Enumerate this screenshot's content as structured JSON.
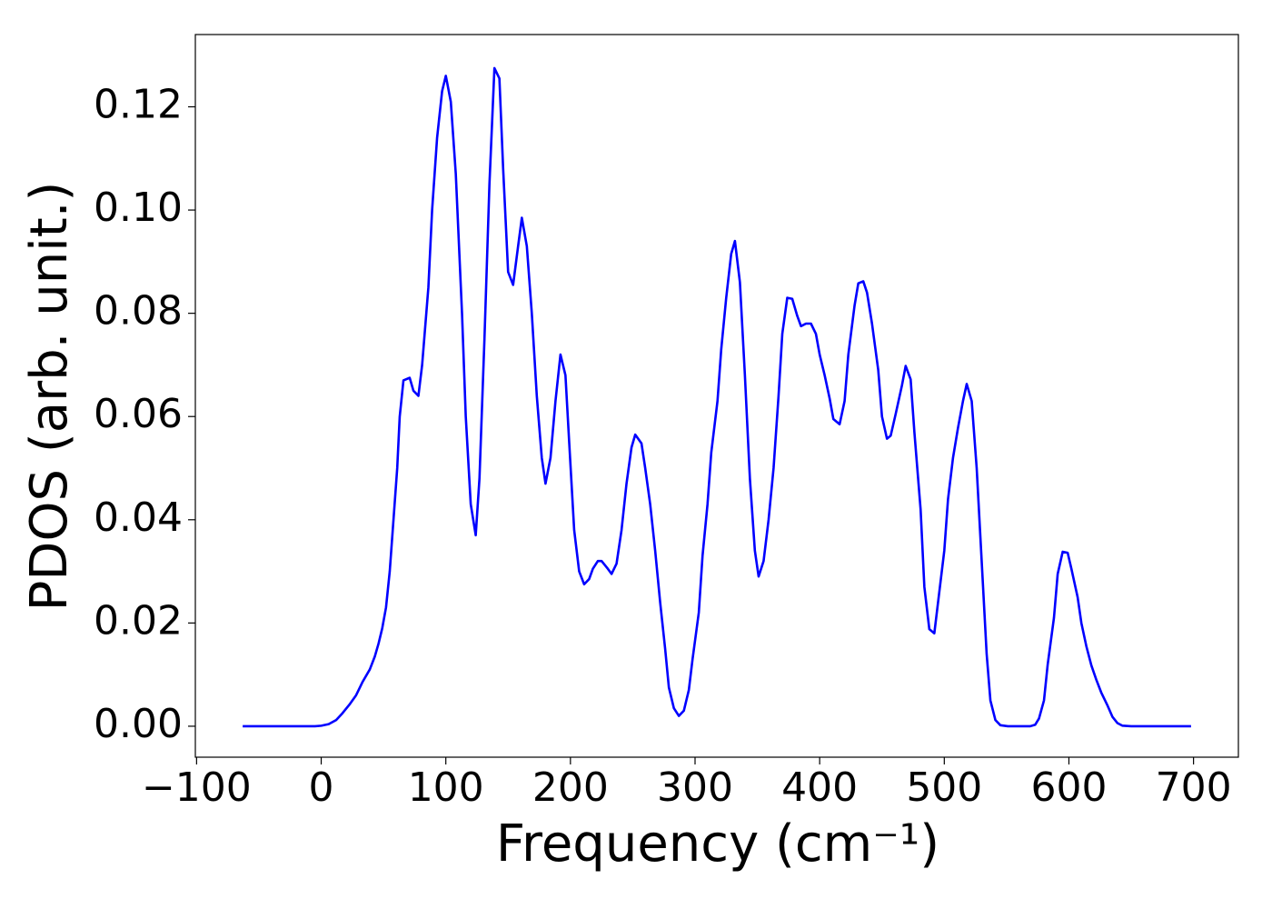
{
  "chart_data": {
    "type": "line",
    "xlabel": "Frequency (cm⁻¹)",
    "ylabel": "PDOS (arb. unit.)",
    "color": "#0000ff",
    "x": [
      -63,
      -5,
      0,
      6,
      12,
      17,
      23,
      28,
      33,
      39,
      43,
      46,
      49,
      52,
      55,
      58,
      61,
      63,
      66,
      71,
      74,
      78,
      81,
      86,
      89,
      93,
      97,
      100,
      104,
      108,
      113,
      116,
      120,
      124,
      127,
      131,
      135,
      139,
      143,
      146,
      150,
      154,
      158,
      161,
      165,
      169,
      173,
      177,
      180,
      184,
      188,
      192,
      196,
      199,
      203,
      207,
      211,
      215,
      218,
      222,
      225,
      230,
      233,
      237,
      241,
      245,
      249,
      252,
      257,
      260,
      264,
      268,
      272,
      276,
      279,
      283,
      287,
      291,
      295,
      298,
      303,
      306,
      310,
      313,
      318,
      321,
      325,
      329,
      332,
      336,
      340,
      344,
      348,
      351,
      355,
      359,
      363,
      367,
      370,
      374,
      378,
      382,
      385,
      389,
      393,
      397,
      400,
      404,
      408,
      411,
      416,
      420,
      423,
      428,
      431,
      435,
      438,
      442,
      447,
      450,
      454,
      457,
      461,
      466,
      469,
      473,
      476,
      481,
      484,
      488,
      492,
      495,
      500,
      503,
      507,
      511,
      515,
      518,
      522,
      526,
      530,
      534,
      537,
      541,
      545,
      551,
      569,
      573,
      576,
      580,
      583,
      588,
      591,
      595,
      599,
      602,
      607,
      610,
      614,
      618,
      622,
      626,
      631,
      635,
      639,
      643,
      650,
      698
    ],
    "values": [
      0,
      0,
      0.0001,
      0.0004,
      0.0012,
      0.0025,
      0.0043,
      0.006,
      0.0085,
      0.011,
      0.0135,
      0.016,
      0.019,
      0.023,
      0.03,
      0.04,
      0.05,
      0.06,
      0.067,
      0.0675,
      0.065,
      0.064,
      0.07,
      0.085,
      0.1,
      0.114,
      0.123,
      0.126,
      0.121,
      0.107,
      0.08,
      0.06,
      0.043,
      0.037,
      0.048,
      0.075,
      0.105,
      0.1275,
      0.1255,
      0.108,
      0.088,
      0.0855,
      0.093,
      0.0985,
      0.093,
      0.08,
      0.064,
      0.052,
      0.047,
      0.052,
      0.063,
      0.072,
      0.068,
      0.055,
      0.038,
      0.03,
      0.0275,
      0.0285,
      0.0305,
      0.032,
      0.032,
      0.0305,
      0.0295,
      0.0315,
      0.038,
      0.047,
      0.054,
      0.0565,
      0.0548,
      0.05,
      0.043,
      0.034,
      0.024,
      0.015,
      0.0075,
      0.0035,
      0.002,
      0.003,
      0.007,
      0.013,
      0.022,
      0.033,
      0.043,
      0.053,
      0.063,
      0.073,
      0.083,
      0.0915,
      0.094,
      0.086,
      0.068,
      0.048,
      0.034,
      0.029,
      0.032,
      0.04,
      0.05,
      0.064,
      0.076,
      0.083,
      0.0828,
      0.0795,
      0.0775,
      0.078,
      0.078,
      0.076,
      0.072,
      0.068,
      0.0635,
      0.0595,
      0.0585,
      0.063,
      0.072,
      0.0815,
      0.0858,
      0.0862,
      0.084,
      0.078,
      0.069,
      0.06,
      0.0557,
      0.0563,
      0.0605,
      0.066,
      0.0698,
      0.0672,
      0.057,
      0.042,
      0.027,
      0.0188,
      0.018,
      0.024,
      0.034,
      0.044,
      0.052,
      0.0578,
      0.063,
      0.0663,
      0.063,
      0.05,
      0.032,
      0.014,
      0.005,
      0.0012,
      0.0002,
      0,
      0,
      0.0003,
      0.0015,
      0.005,
      0.012,
      0.021,
      0.0295,
      0.0338,
      0.0336,
      0.0305,
      0.025,
      0.02,
      0.0155,
      0.0118,
      0.009,
      0.0065,
      0.004,
      0.0018,
      0.0006,
      0.0001,
      0,
      0
    ],
    "xlim": [
      -101,
      736
    ],
    "ylim": [
      -0.006,
      0.134
    ],
    "xticks": [
      {
        "value": -100,
        "label": "−100"
      },
      0,
      100,
      200,
      300,
      400,
      500,
      600,
      700
    ],
    "yticks": [
      {
        "value": 0,
        "label": "0.00"
      },
      {
        "value": 0.02,
        "label": "0.02"
      },
      {
        "value": 0.04,
        "label": "0.04"
      },
      {
        "value": 0.06,
        "label": "0.06"
      },
      {
        "value": 0.08,
        "label": "0.08"
      },
      {
        "value": 0.1,
        "label": "0.10"
      },
      {
        "value": 0.12,
        "label": "0.12"
      }
    ],
    "grid": false
  }
}
